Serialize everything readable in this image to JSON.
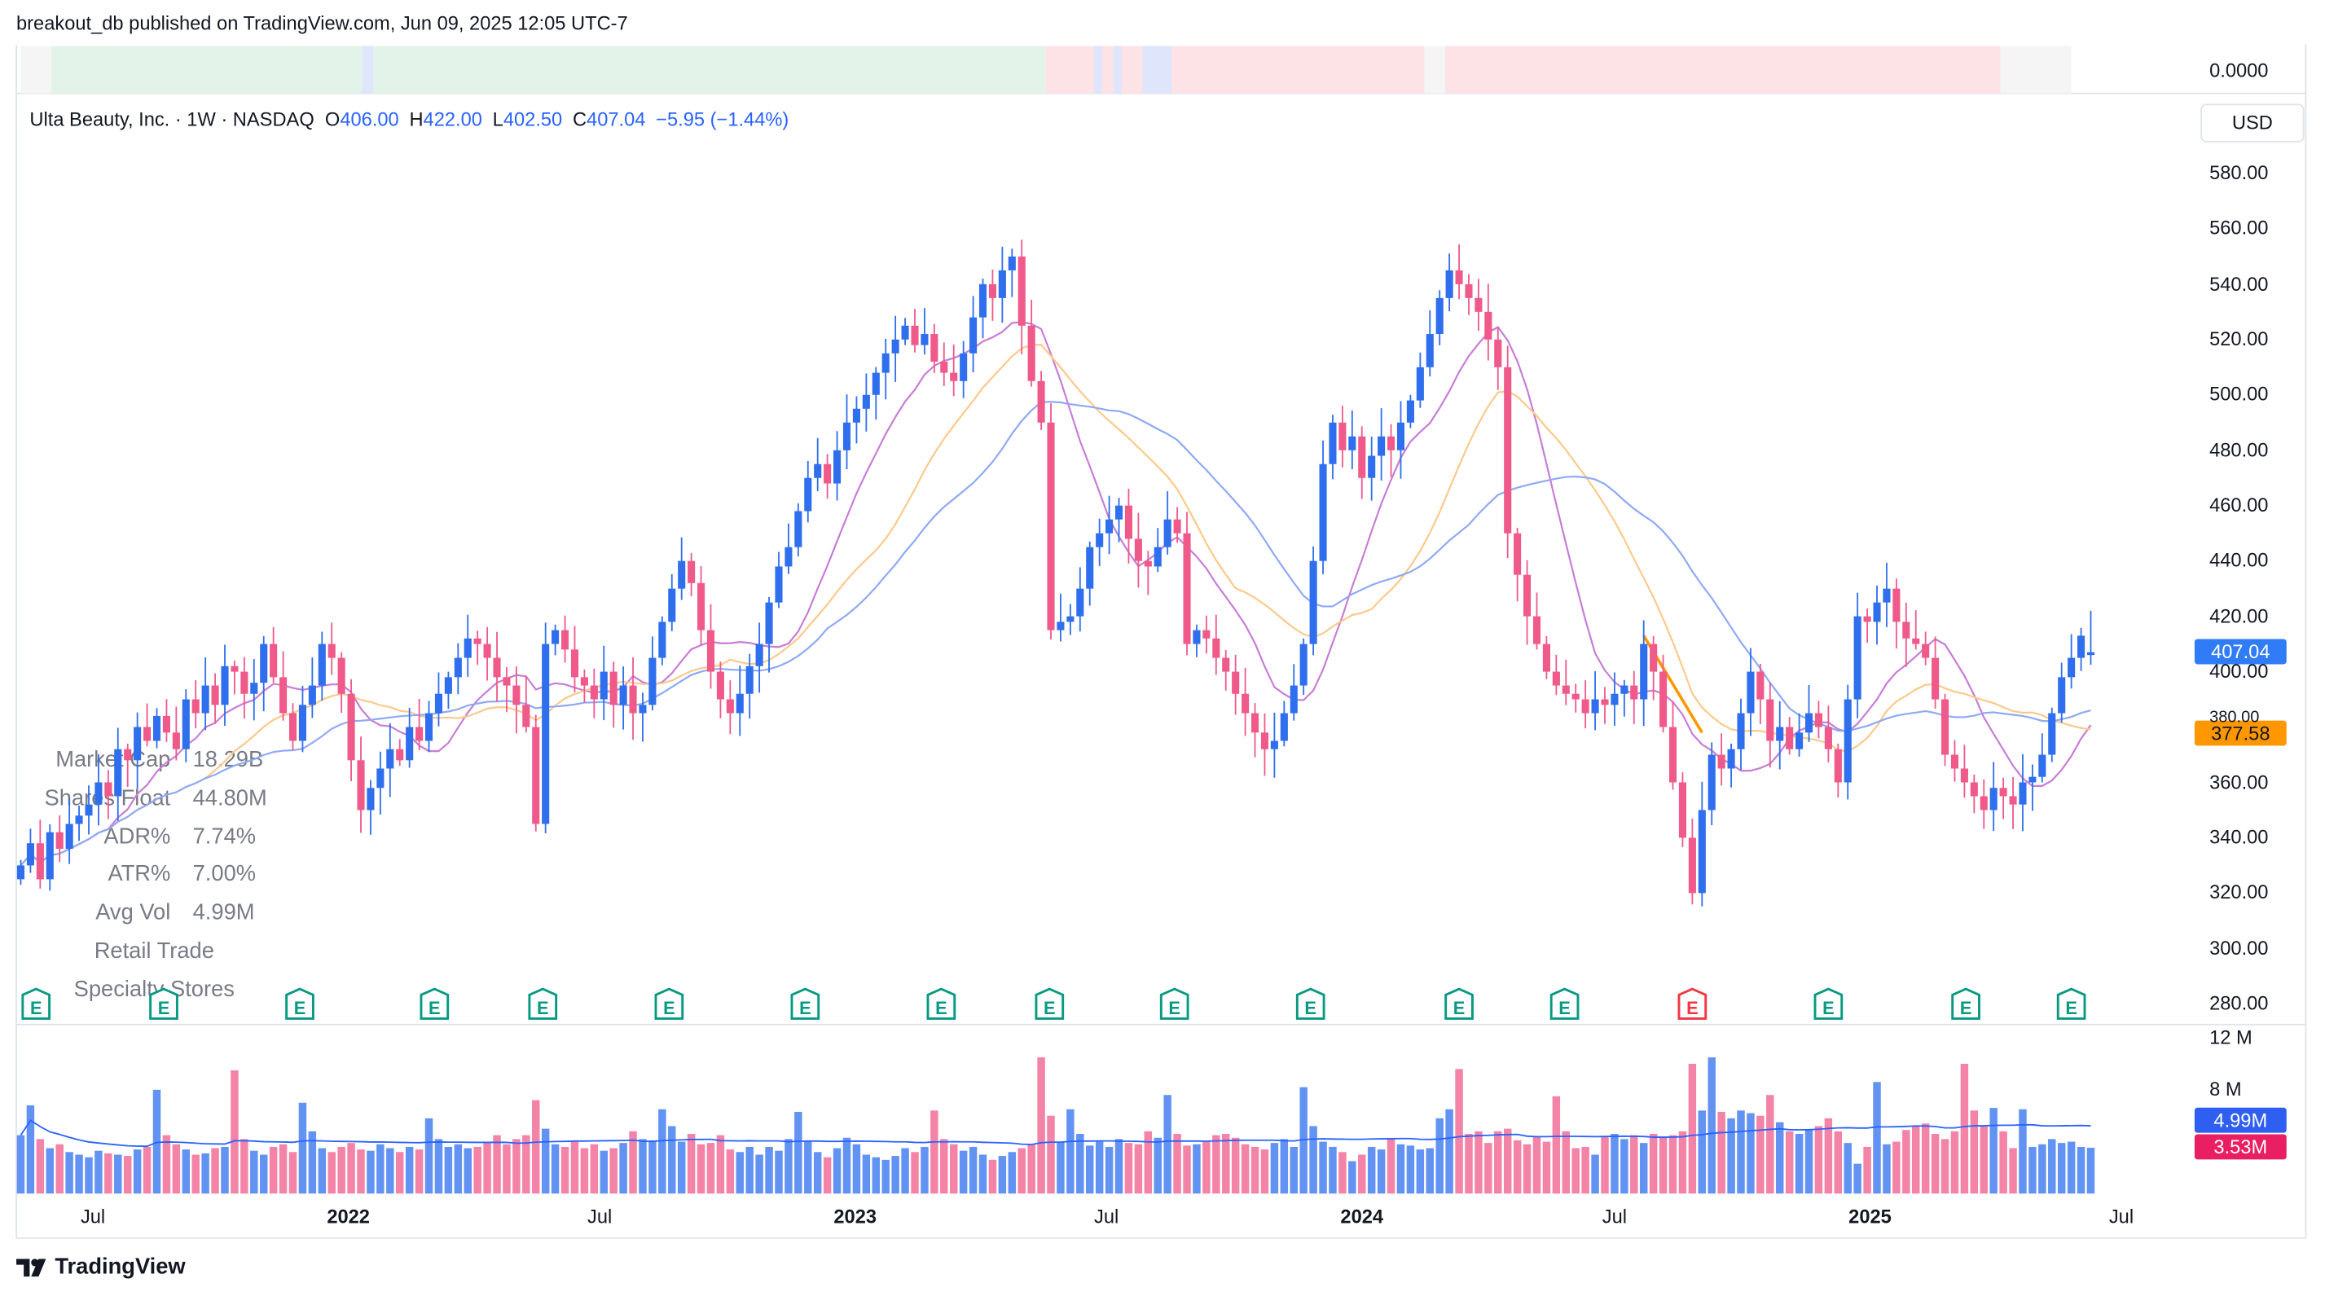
{
  "header": {
    "published": "breakout_db published on TradingView.com, Jun 09, 2025 12:05 UTC-7"
  },
  "legend": {
    "symbol": "Ulta Beauty, Inc. · 1W · NASDAQ",
    "o_label": "O",
    "o": "406.00",
    "h_label": "H",
    "h": "422.00",
    "l_label": "L",
    "l": "402.50",
    "c_label": "C",
    "c": "407.04",
    "change": "−5.95 (−1.44%)"
  },
  "stats": [
    {
      "label": "Market Cap",
      "value": "18.29B"
    },
    {
      "label": "Shares Float",
      "value": "44.80M"
    },
    {
      "label": "ADR%",
      "value": "7.74%"
    },
    {
      "label": "ATR%",
      "value": "7.00%"
    },
    {
      "label": "Avg Vol",
      "value": "4.99M"
    },
    {
      "label": "Retail Trade",
      "value": ""
    },
    {
      "label": "Specialty Stores",
      "value": ""
    }
  ],
  "top_band": {
    "value_label": "0.0000",
    "segments": [
      {
        "from": "2021-05-10",
        "to": "2021-06-01",
        "color": "#f5f5f5"
      },
      {
        "from": "2021-06-01",
        "to": "2023-05-18",
        "color": "#e4f3ea"
      },
      {
        "from": "2022-01-11",
        "to": "2022-01-19",
        "color": "#dfe6fb"
      },
      {
        "from": "2023-05-18",
        "to": "2024-02-15",
        "color": "#fde3e6"
      },
      {
        "from": "2023-06-22",
        "to": "2023-06-28",
        "color": "#dfe6fb"
      },
      {
        "from": "2023-07-06",
        "to": "2023-07-12",
        "color": "#dfe6fb"
      },
      {
        "from": "2023-07-27",
        "to": "2023-08-17",
        "color": "#dfe6fb"
      },
      {
        "from": "2024-02-15",
        "to": "2024-03-01",
        "color": "#f5f5f5"
      },
      {
        "from": "2024-03-01",
        "to": "2025-04-05",
        "color": "#fde3e6"
      },
      {
        "from": "2025-04-05",
        "to": "2025-05-26",
        "color": "#f5f5f5"
      }
    ]
  },
  "price_axis": {
    "currency": "USD",
    "ticks": [
      "580.00",
      "560.00",
      "540.00",
      "520.00",
      "500.00",
      "480.00",
      "460.00",
      "440.00",
      "420.00",
      "400.00",
      "380.00",
      "360.00",
      "340.00",
      "320.00",
      "300.00",
      "280.00"
    ],
    "last_price": "407.04",
    "line_value": "377.58"
  },
  "volume_axis": {
    "ticks": [
      "12 M",
      "8 M"
    ],
    "avg_label": "4.99M",
    "last_label": "3.53M"
  },
  "time_axis": {
    "ticks": [
      {
        "label": "Jul",
        "date": "2021-07-01"
      },
      {
        "label": "2022",
        "date": "2022-01-01"
      },
      {
        "label": "Jul",
        "date": "2022-07-01"
      },
      {
        "label": "2023",
        "date": "2023-01-01"
      },
      {
        "label": "Jul",
        "date": "2023-07-01"
      },
      {
        "label": "2024",
        "date": "2024-01-01"
      },
      {
        "label": "Jul",
        "date": "2024-07-01"
      },
      {
        "label": "2025",
        "date": "2025-01-01"
      },
      {
        "label": "Jul",
        "date": "2025-07-01"
      }
    ]
  },
  "brand": "TradingView",
  "colors": {
    "up": "#2f6fed",
    "down": "#ef5a8a",
    "ma_fast": "#c77dd6",
    "ma_mid": "#fdc98a",
    "ma_slow": "#8ea9f5",
    "earn": "#089981",
    "earn_miss": "#f23645",
    "trendline": "#ff9800",
    "avg_vol": "#2962ff"
  },
  "chart_data": {
    "type": "candlestick",
    "interval": "1W",
    "first_week": "2021-05-10",
    "ylim": [
      270,
      590
    ],
    "volume_ylim_millions": [
      0,
      12
    ],
    "last_bar": {
      "open": 406.0,
      "high": 422.0,
      "low": 402.5,
      "close": 407.04
    },
    "closes": [
      330,
      338,
      325,
      342,
      336,
      345,
      348,
      352,
      360,
      355,
      372,
      368,
      380,
      375,
      384,
      378,
      372,
      390,
      385,
      395,
      388,
      402,
      400,
      392,
      396,
      410,
      398,
      385,
      375,
      388,
      395,
      410,
      405,
      392,
      368,
      350,
      358,
      365,
      372,
      368,
      380,
      375,
      385,
      392,
      398,
      405,
      412,
      410,
      405,
      398,
      395,
      388,
      380,
      345,
      410,
      415,
      408,
      398,
      395,
      390,
      400,
      388,
      395,
      385,
      388,
      405,
      418,
      430,
      440,
      432,
      415,
      400,
      390,
      385,
      392,
      402,
      410,
      425,
      438,
      445,
      458,
      470,
      475,
      468,
      480,
      490,
      495,
      500,
      508,
      515,
      520,
      525,
      518,
      522,
      512,
      508,
      505,
      515,
      528,
      540,
      535,
      545,
      550,
      525,
      505,
      490,
      415,
      418,
      420,
      430,
      445,
      450,
      455,
      460,
      448,
      440,
      438,
      445,
      455,
      450,
      410,
      415,
      412,
      405,
      400,
      392,
      385,
      378,
      372,
      375,
      385,
      395,
      410,
      440,
      475,
      490,
      480,
      485,
      470,
      478,
      485,
      480,
      490,
      498,
      510,
      522,
      535,
      545,
      540,
      535,
      530,
      520,
      510,
      450,
      435,
      420,
      410,
      400,
      395,
      392,
      390,
      385,
      390,
      388,
      392,
      395,
      390,
      410,
      400,
      380,
      360,
      340,
      320,
      350,
      370,
      365,
      372,
      385,
      400,
      390,
      375,
      380,
      372,
      378,
      385,
      380,
      372,
      360,
      390,
      420,
      418,
      425,
      430,
      418,
      412,
      410,
      405,
      390,
      370,
      365,
      360,
      355,
      350,
      358,
      355,
      352,
      360,
      362,
      370,
      385,
      398,
      405,
      413,
      407.04
    ],
    "volume_millions": [
      4.5,
      6.8,
      4.2,
      3.5,
      3.8,
      3.2,
      3.0,
      2.8,
      3.3,
      3.1,
      3.0,
      2.9,
      3.4,
      3.6,
      8.0,
      4.5,
      3.8,
      3.4,
      3.0,
      3.1,
      3.5,
      3.6,
      9.5,
      4.2,
      3.3,
      3.0,
      3.6,
      3.8,
      3.2,
      7.0,
      4.8,
      3.5,
      3.2,
      3.6,
      3.9,
      3.4,
      3.3,
      3.8,
      3.5,
      3.2,
      3.6,
      3.4,
      5.8,
      4.2,
      3.6,
      3.8,
      3.5,
      3.6,
      4.0,
      4.5,
      3.8,
      4.2,
      4.5,
      7.2,
      5.0,
      3.8,
      3.6,
      4.0,
      3.5,
      3.8,
      3.3,
      3.5,
      3.9,
      4.8,
      4.2,
      4.1,
      6.5,
      5.2,
      4.0,
      4.6,
      3.8,
      3.9,
      4.5,
      3.4,
      3.2,
      3.6,
      3.0,
      3.6,
      3.3,
      4.2,
      6.3,
      4.0,
      3.2,
      2.8,
      3.5,
      4.3,
      3.8,
      3.0,
      2.8,
      2.6,
      2.9,
      3.5,
      3.2,
      3.6,
      6.4,
      4.2,
      3.8,
      3.3,
      3.6,
      3.0,
      2.6,
      2.9,
      3.2,
      3.5,
      3.8,
      10.5,
      6.0,
      4.0,
      6.5,
      4.6,
      3.7,
      4.0,
      3.6,
      4.2,
      3.9,
      3.8,
      4.8,
      4.3,
      7.6,
      4.6,
      3.7,
      3.8,
      4.0,
      4.5,
      4.6,
      4.3,
      3.8,
      3.6,
      3.4,
      3.9,
      4.2,
      3.6,
      8.2,
      5.2,
      4.0,
      3.6,
      3.2,
      2.5,
      3.0,
      3.6,
      3.4,
      4.2,
      3.8,
      3.7,
      3.4,
      3.5,
      5.8,
      6.5,
      9.6,
      4.6,
      4.8,
      3.9,
      4.8,
      5.0,
      4.1,
      3.8,
      4.4,
      4.0,
      7.5,
      4.8,
      3.5,
      3.6,
      3.0,
      4.4,
      4.6,
      4.2,
      4.5,
      3.9,
      4.6,
      4.4,
      4.5,
      4.8,
      10.0,
      6.4,
      10.5,
      6.3,
      5.8,
      6.4,
      6.2,
      6.0,
      7.6,
      5.5,
      4.8,
      4.6,
      4.9,
      5.2,
      5.8,
      4.8,
      3.9,
      2.3,
      3.6,
      8.6,
      3.8,
      4.0,
      4.9,
      5.2,
      5.4,
      4.6,
      4.2,
      4.8,
      10.0,
      6.4,
      5.2,
      6.6,
      4.8,
      3.5,
      6.5,
      3.6,
      3.8,
      4.2,
      3.9,
      4.0,
      3.6,
      3.53
    ],
    "moving_averages": [
      {
        "period": 10,
        "color_key": "ma_fast"
      },
      {
        "period": 20,
        "color_key": "ma_mid"
      },
      {
        "period": 30,
        "color_key": "ma_slow"
      }
    ],
    "avg_volume_period": 50,
    "earnings": [
      {
        "date": "2021-05-21",
        "result": "beat"
      },
      {
        "date": "2021-08-21",
        "result": "beat"
      },
      {
        "date": "2021-11-27",
        "result": "beat"
      },
      {
        "date": "2022-03-04",
        "result": "beat"
      },
      {
        "date": "2022-05-21",
        "result": "beat"
      },
      {
        "date": "2022-08-20",
        "result": "beat"
      },
      {
        "date": "2022-11-26",
        "result": "beat"
      },
      {
        "date": "2023-03-04",
        "result": "beat"
      },
      {
        "date": "2023-05-21",
        "result": "beat"
      },
      {
        "date": "2023-08-19",
        "result": "beat"
      },
      {
        "date": "2023-11-25",
        "result": "beat"
      },
      {
        "date": "2024-03-11",
        "result": "beat"
      },
      {
        "date": "2024-05-26",
        "result": "beat"
      },
      {
        "date": "2024-08-26",
        "result": "miss"
      },
      {
        "date": "2024-12-02",
        "result": "beat"
      },
      {
        "date": "2025-03-11",
        "result": "beat"
      },
      {
        "date": "2025-05-26",
        "result": "beat"
      }
    ],
    "earnings_label": "E",
    "trendline": {
      "from": {
        "date": "2024-07-22",
        "price": 413
      },
      "to": {
        "date": "2024-09-02",
        "price": 378
      }
    }
  }
}
